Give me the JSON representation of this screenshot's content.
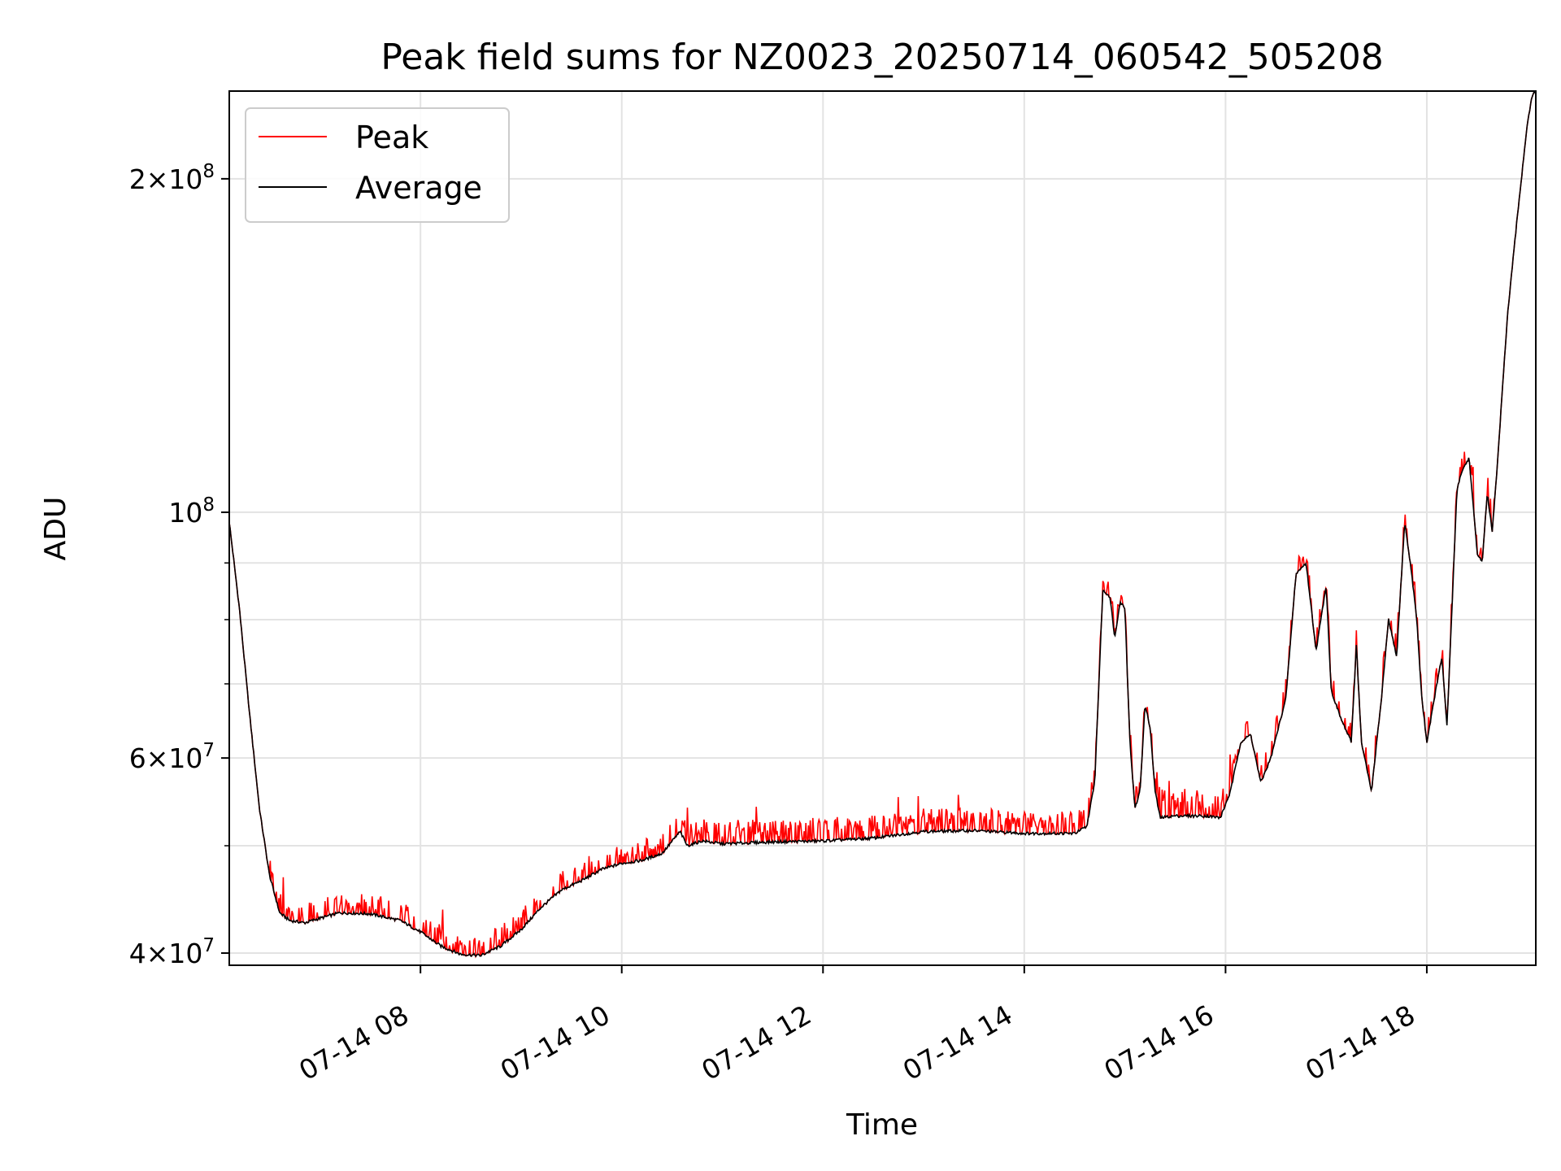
{
  "chart_data": {
    "type": "line",
    "title": "Peak field sums for NZ0023_20250714_060542_505208",
    "xlabel": "Time",
    "ylabel": "ADU",
    "yscale": "log",
    "ylim": [
      39000000,
      240000000
    ],
    "xlim": [
      "07-14 06:06",
      "07-14 19:05"
    ],
    "grid": true,
    "legend_position": "top-left",
    "xticks": [
      {
        "t": 8,
        "label": "07-14 08"
      },
      {
        "t": 10,
        "label": "07-14 10"
      },
      {
        "t": 12,
        "label": "07-14 12"
      },
      {
        "t": 14,
        "label": "07-14 14"
      },
      {
        "t": 16,
        "label": "07-14 16"
      },
      {
        "t": 18,
        "label": "07-14 18"
      }
    ],
    "yticks": [
      {
        "v": 40000000,
        "base": "4",
        "exp": "7",
        "kind": "sci"
      },
      {
        "v": 60000000,
        "base": "6",
        "exp": "7",
        "kind": "sci"
      },
      {
        "v": 100000000,
        "base": "10",
        "exp": "8",
        "kind": "pow"
      },
      {
        "v": 200000000,
        "base": "2",
        "exp": "8",
        "kind": "sci"
      }
    ],
    "series": [
      {
        "name": "Peak",
        "color": "#ff0000"
      },
      {
        "name": "Average",
        "color": "#000000"
      }
    ],
    "x_unit": "hour of 2025-07-14",
    "average": [
      [
        6.1,
        98
      ],
      [
        6.2,
        82
      ],
      [
        6.3,
        66
      ],
      [
        6.4,
        54
      ],
      [
        6.5,
        47
      ],
      [
        6.6,
        43.5
      ],
      [
        6.7,
        42.8
      ],
      [
        6.85,
        42.6
      ],
      [
        7.0,
        43.0
      ],
      [
        7.2,
        43.5
      ],
      [
        7.5,
        43.4
      ],
      [
        7.8,
        42.8
      ],
      [
        8.0,
        41.8
      ],
      [
        8.2,
        40.6
      ],
      [
        8.4,
        39.9
      ],
      [
        8.6,
        39.8
      ],
      [
        8.8,
        40.6
      ],
      [
        9.0,
        42
      ],
      [
        9.2,
        44
      ],
      [
        9.4,
        45.6
      ],
      [
        9.6,
        46.5
      ],
      [
        9.8,
        47.6
      ],
      [
        10.0,
        48.2
      ],
      [
        10.2,
        48.5
      ],
      [
        10.4,
        49.2
      ],
      [
        10.58,
        51.5
      ],
      [
        10.65,
        50.0
      ],
      [
        10.8,
        50.5
      ],
      [
        11.0,
        50.2
      ],
      [
        11.5,
        50.4
      ],
      [
        12.0,
        50.5
      ],
      [
        12.5,
        50.8
      ],
      [
        13.0,
        51.5
      ],
      [
        13.5,
        51.6
      ],
      [
        14.0,
        51.3
      ],
      [
        14.5,
        51.3
      ],
      [
        14.62,
        52.0
      ],
      [
        14.7,
        57.0
      ],
      [
        14.78,
        85.0
      ],
      [
        14.85,
        84.0
      ],
      [
        14.9,
        77.0
      ],
      [
        14.95,
        83.0
      ],
      [
        15.0,
        82.0
      ],
      [
        15.05,
        62.0
      ],
      [
        15.1,
        54.0
      ],
      [
        15.15,
        56.0
      ],
      [
        15.2,
        67.0
      ],
      [
        15.25,
        64.0
      ],
      [
        15.3,
        56.0
      ],
      [
        15.35,
        53.0
      ],
      [
        15.5,
        53.2
      ],
      [
        15.8,
        53.2
      ],
      [
        15.95,
        53.0
      ],
      [
        16.05,
        56.0
      ],
      [
        16.15,
        62.0
      ],
      [
        16.25,
        63.0
      ],
      [
        16.35,
        57.0
      ],
      [
        16.45,
        60.0
      ],
      [
        16.6,
        68.0
      ],
      [
        16.7,
        88.0
      ],
      [
        16.8,
        90.0
      ],
      [
        16.9,
        75.0
      ],
      [
        17.0,
        86.0
      ],
      [
        17.05,
        69.0
      ],
      [
        17.15,
        65.0
      ],
      [
        17.25,
        62.0
      ],
      [
        17.3,
        76.0
      ],
      [
        17.35,
        62.0
      ],
      [
        17.45,
        56.0
      ],
      [
        17.55,
        68.0
      ],
      [
        17.62,
        80.0
      ],
      [
        17.7,
        74.0
      ],
      [
        17.78,
        98.0
      ],
      [
        17.85,
        88.0
      ],
      [
        17.9,
        80.0
      ],
      [
        17.95,
        68.0
      ],
      [
        18.0,
        62.0
      ],
      [
        18.1,
        70.0
      ],
      [
        18.15,
        74.0
      ],
      [
        18.2,
        64.0
      ],
      [
        18.3,
        105.0
      ],
      [
        18.35,
        109.0
      ],
      [
        18.42,
        112.0
      ],
      [
        18.5,
        92.0
      ],
      [
        18.55,
        90.0
      ],
      [
        18.6,
        104.0
      ],
      [
        18.65,
        96.0
      ],
      [
        18.7,
        110.0
      ],
      [
        18.8,
        150.0
      ],
      [
        18.9,
        185.0
      ],
      [
        19.0,
        225.0
      ],
      [
        19.05,
        238.0
      ],
      [
        19.08,
        240.0
      ]
    ],
    "peak_offset_note": "Peak tracks Average with frequent upward spikes"
  },
  "legend": {
    "peak_label": "Peak",
    "average_label": "Average"
  }
}
